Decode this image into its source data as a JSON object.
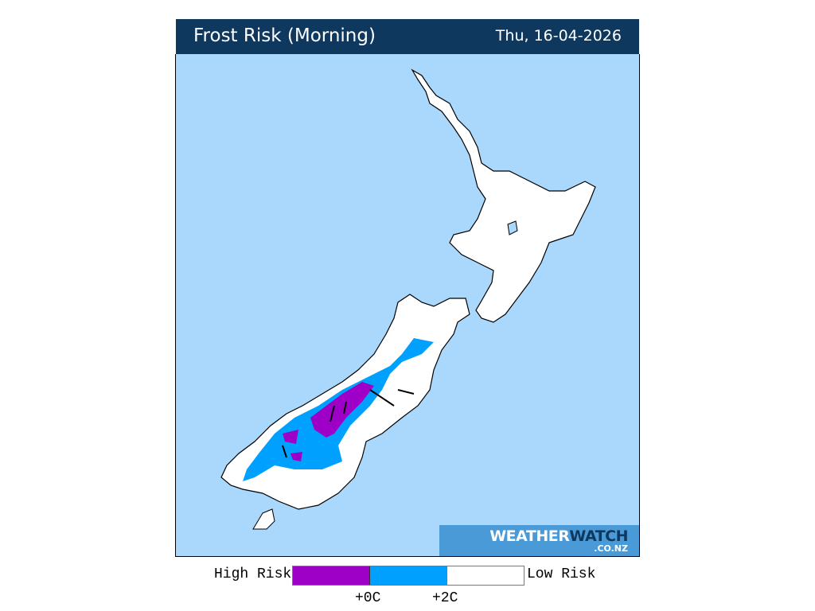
{
  "header": {
    "title": "Frost Risk (Morning)",
    "date": "Thu, 16-04-2026"
  },
  "map": {
    "sea_color": "#aad8fd",
    "land_color": "#ffffff"
  },
  "logo": {
    "main_light": "WEATHER",
    "main_dark": "WATCH",
    "sub": ".CO.NZ"
  },
  "legend": {
    "high_label": "High Risk",
    "low_label": "Low Risk",
    "bins": [
      {
        "color": "#9f00c8"
      },
      {
        "color": "#00a0ff"
      },
      {
        "color": "#ffffff"
      }
    ],
    "ticks": [
      "+0C",
      "+2C"
    ]
  }
}
